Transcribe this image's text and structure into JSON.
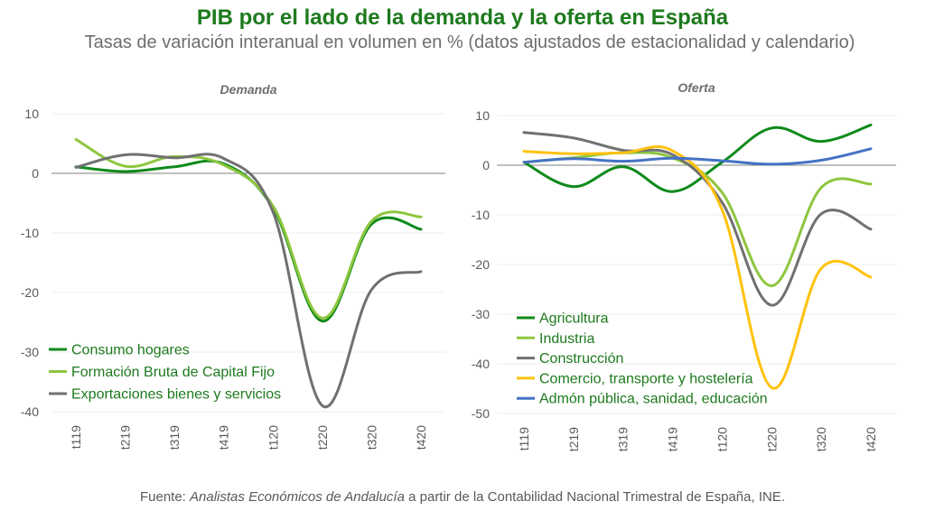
{
  "title": "PIB por el lado de la demanda y la oferta en España",
  "subtitle": "Tasas de variación interanual en volumen en % (datos ajustados de estacionalidad y calendario)",
  "source": {
    "prefix": "Fuente: ",
    "author": "Analistas Económicos de Andalucía",
    "suffix": " a partir de la Contabilidad Nacional Trimestral de España, INE."
  },
  "chart_data": [
    {
      "type": "line",
      "title": "Demanda",
      "categories": [
        "t119",
        "t219",
        "t319",
        "t419",
        "t120",
        "t220",
        "t320",
        "t420"
      ],
      "ylim": [
        -40,
        10
      ],
      "yticks": [
        10,
        0,
        -10,
        -20,
        -30,
        -40
      ],
      "grid": true,
      "legend": "bottom-left",
      "series": [
        {
          "name": "Consumo hogares",
          "color": "#0f8a1b",
          "values": [
            1.1,
            0.3,
            1.1,
            1.6,
            -5.8,
            -24.8,
            -8.5,
            -9.4
          ]
        },
        {
          "name": "Formación Bruta de Capital Fijo",
          "color": "#8ec63f",
          "values": [
            5.7,
            1.2,
            2.8,
            1.4,
            -5.5,
            -24.3,
            -8.0,
            -7.3
          ]
        },
        {
          "name": "Exportaciones bienes y servicios",
          "color": "#707070",
          "values": [
            1.0,
            3.1,
            2.6,
            2.5,
            -6.5,
            -39.0,
            -19.5,
            -16.5
          ]
        }
      ]
    },
    {
      "type": "line",
      "title": "Oferta",
      "categories": [
        "t119",
        "t219",
        "t319",
        "t419",
        "t120",
        "t220",
        "t320",
        "t420"
      ],
      "ylim": [
        -50,
        10
      ],
      "yticks": [
        10,
        0,
        -10,
        -20,
        -30,
        -40,
        -50
      ],
      "grid": true,
      "legend": "bottom-left",
      "series": [
        {
          "name": "Agricultura",
          "color": "#0f8a1b",
          "values": [
            0.6,
            -4.3,
            -0.3,
            -5.3,
            0.6,
            7.5,
            4.8,
            8.1
          ]
        },
        {
          "name": "Industria",
          "color": "#8ec63f",
          "values": [
            0.6,
            1.5,
            2.5,
            1.5,
            -5.5,
            -24.3,
            -4.5,
            -3.8
          ]
        },
        {
          "name": "Construcción",
          "color": "#707070",
          "values": [
            6.6,
            5.5,
            3.0,
            2.1,
            -7.5,
            -28.2,
            -9.8,
            -12.9
          ]
        },
        {
          "name": "Comercio, transporte y hostelería",
          "color": "#ffc20e",
          "values": [
            2.8,
            2.3,
            2.5,
            2.9,
            -9.0,
            -44.8,
            -20.8,
            -22.5
          ]
        },
        {
          "name": "Admón pública, sanidad, educación",
          "color": "#4472c4",
          "values": [
            0.6,
            1.3,
            0.8,
            1.4,
            0.9,
            0.2,
            1.0,
            3.3
          ]
        }
      ]
    }
  ]
}
